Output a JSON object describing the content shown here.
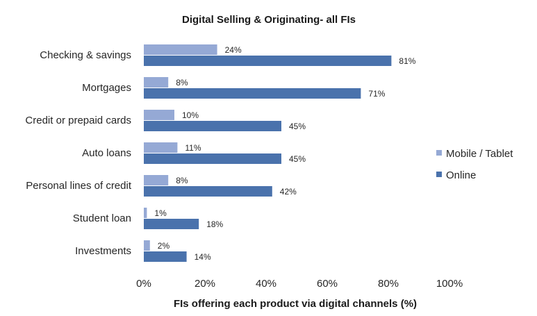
{
  "chart_data": {
    "type": "bar",
    "orientation": "horizontal",
    "title": "Digital Selling  & Originating- all FIs",
    "xlabel": "FIs offering each product via digital channels (%)",
    "ylabel": "",
    "xlim": [
      0,
      100
    ],
    "x_ticks": [
      "0%",
      "20%",
      "40%",
      "60%",
      "80%",
      "100%"
    ],
    "categories": [
      "Checking & savings",
      "Mortgages",
      "Credit or prepaid cards",
      "Auto loans",
      "Personal lines of credit",
      "Student loan",
      "Investments"
    ],
    "series": [
      {
        "name": "Mobile / Tablet",
        "color": "#95A9D5",
        "values": [
          24,
          8,
          10,
          11,
          8,
          1,
          2
        ],
        "labels": [
          "24%",
          "8%",
          "10%",
          "11%",
          "8%",
          "1%",
          "2%"
        ]
      },
      {
        "name": "Online",
        "color": "#4A72AC",
        "values": [
          81,
          71,
          45,
          45,
          42,
          18,
          14
        ],
        "labels": [
          "81%",
          "71%",
          "45%",
          "45%",
          "42%",
          "18%",
          "14%"
        ]
      }
    ],
    "grid": false,
    "legend_position": "right"
  }
}
